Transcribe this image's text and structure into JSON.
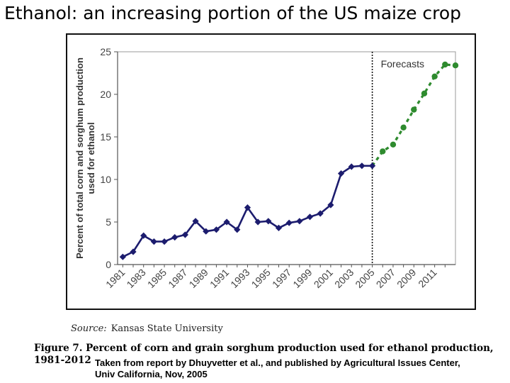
{
  "slide_title": "Ethanol: an increasing portion of the US maize crop",
  "source": {
    "label": "Source:",
    "text": "Kansas State University"
  },
  "caption": {
    "line1": "Figure 7.  Percent of corn and grain sorghum production used for ethanol production,",
    "line2": "1981-2012"
  },
  "credit": {
    "line1": "Taken from report by Dhuyvetter et al., and published by Agricultural Issues Center,",
    "line2": "Univ California, Nov, 2005"
  },
  "chart_data": {
    "type": "line",
    "title": "",
    "xlabel": "",
    "ylabel": "Percent of total corn and sorghum production used for ethanol",
    "ylabel_lines": [
      "Percent of total corn and sorghum production",
      "used for ethanol"
    ],
    "xlim": [
      1980.5,
      2013
    ],
    "ylim": [
      0,
      25
    ],
    "yticks": [
      0,
      5,
      10,
      15,
      20,
      25
    ],
    "xticks": [
      "1981",
      "1983",
      "1985",
      "1987",
      "1989",
      "1991",
      "1993",
      "1995",
      "1997",
      "1999",
      "2001",
      "2003",
      "2005",
      "2007",
      "2009",
      "2011"
    ],
    "grid": false,
    "divider_x": 2005,
    "annotation": "Forecasts",
    "series": [
      {
        "style": "solid",
        "color": "#1c1c6e",
        "x": [
          1981,
          1982,
          1983,
          1984,
          1985,
          1986,
          1987,
          1988,
          1989,
          1990,
          1991,
          1992,
          1993,
          1994,
          1995,
          1996,
          1997,
          1998,
          1999,
          2000,
          2001,
          2002,
          2003,
          2004,
          2005
        ],
        "y": [
          0.9,
          1.5,
          3.4,
          2.7,
          2.7,
          3.2,
          3.5,
          5.1,
          3.9,
          4.1,
          5.0,
          4.1,
          6.7,
          5.0,
          5.1,
          4.3,
          4.9,
          5.1,
          5.6,
          6.0,
          7.0,
          10.7,
          11.5,
          11.6,
          11.6
        ]
      },
      {
        "style": "dashed",
        "color": "#2e8b2e",
        "x": [
          2005,
          2006,
          2007,
          2008,
          2009,
          2010,
          2011,
          2012,
          2013
        ],
        "y": [
          11.6,
          13.3,
          14.1,
          16.1,
          18.2,
          20.1,
          22.1,
          23.5,
          23.4
        ]
      }
    ]
  }
}
